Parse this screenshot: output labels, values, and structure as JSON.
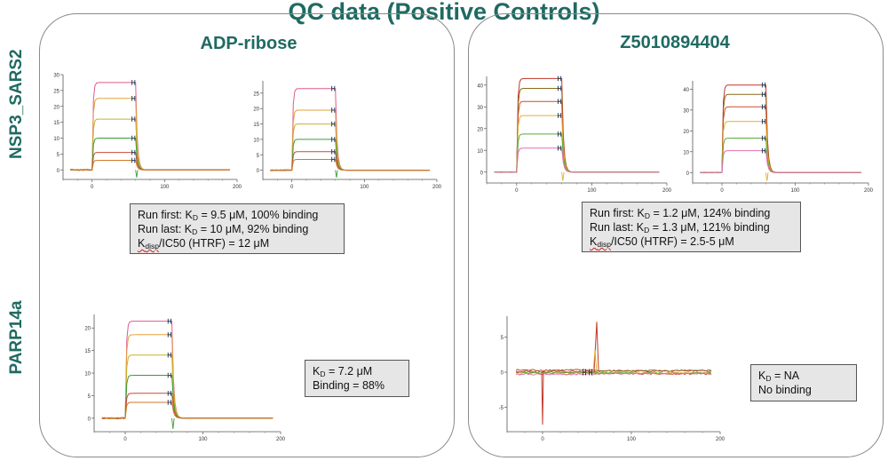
{
  "title": "QC data (Positive Controls)",
  "columns": [
    "ADP-ribose",
    "Z5010894404"
  ],
  "rows": [
    "NSP3_SARS2",
    "PARP14a"
  ],
  "notes": {
    "nsp3_adp": {
      "l1a": "Run first: K",
      "l1s": "D",
      "l1b": " = 9.5 μM, 100% binding",
      "l2a": "Run last: K",
      "l2s": "D",
      "l2b": " = 10 μM, 92% binding",
      "l3a": "K",
      "l3s": "disp",
      "l3b": "/IC50 (HTRF) = 12 μM"
    },
    "nsp3_z": {
      "l1a": "Run first: K",
      "l1s": "D",
      "l1b": " = 1.2 μM, 124% binding",
      "l2a": "Run last: K",
      "l2s": "D",
      "l2b": " = 1.3 μM, 121% binding",
      "l3a": "K",
      "l3s": "disp",
      "l3b": "/IC50 (HTRF) = 2.5-5 μM"
    },
    "parp_adp": {
      "l1a": "K",
      "l1s": "D",
      "l1b": " = 7.2 μM",
      "l2": "Binding = 88%"
    },
    "parp_z": {
      "l1a": "K",
      "l1s": "D",
      "l1b": " = NA",
      "l2": "No binding"
    }
  },
  "chart_data": [
    {
      "id": "nsp3-adp-first",
      "type": "line",
      "x_ticks": [
        0,
        100,
        200
      ],
      "y_ticks": [
        0,
        5,
        10,
        15,
        20,
        25,
        30
      ],
      "xlim": [
        -40,
        200
      ],
      "ylim": [
        -3,
        30
      ],
      "association": [
        0,
        60
      ],
      "x_curve_start": -30,
      "x_curve_end": 190,
      "series": [
        {
          "color": "#e05a8c",
          "plateau": 27.5
        },
        {
          "color": "#e3a23a",
          "plateau": 22.5
        },
        {
          "color": "#c9b02a",
          "plateau": 16.0
        },
        {
          "color": "#3a9c3a",
          "plateau": 10.0
        },
        {
          "color": "#c84a3a",
          "plateau": 5.5
        },
        {
          "color": "#d07a2a",
          "plateau": 3.0
        }
      ]
    },
    {
      "id": "nsp3-adp-last",
      "type": "line",
      "x_ticks": [
        0,
        100,
        200
      ],
      "y_ticks": [
        0,
        5,
        10,
        15,
        20,
        25
      ],
      "xlim": [
        -40,
        200
      ],
      "ylim": [
        -3,
        29
      ],
      "association": [
        0,
        60
      ],
      "x_curve_start": -30,
      "x_curve_end": 190,
      "series": [
        {
          "color": "#e05a8c",
          "plateau": 26.5
        },
        {
          "color": "#e3a23a",
          "plateau": 19.5
        },
        {
          "color": "#c9b02a",
          "plateau": 15.0
        },
        {
          "color": "#3a9c3a",
          "plateau": 10.0
        },
        {
          "color": "#c84a3a",
          "plateau": 6.0
        },
        {
          "color": "#d07a2a",
          "plateau": 3.5
        }
      ]
    },
    {
      "id": "nsp3-z-first",
      "type": "line",
      "x_ticks": [
        0,
        100,
        200
      ],
      "y_ticks": [
        0,
        10,
        20,
        30,
        40
      ],
      "xlim": [
        -40,
        200
      ],
      "ylim": [
        -5,
        44
      ],
      "association": [
        0,
        60
      ],
      "x_curve_start": -30,
      "x_curve_end": 190,
      "series": [
        {
          "color": "#c0392b",
          "plateau": 43.0
        },
        {
          "color": "#8a6a1a",
          "plateau": 38.5
        },
        {
          "color": "#d04a2a",
          "plateau": 32.5
        },
        {
          "color": "#e0b030",
          "plateau": 26.0
        },
        {
          "color": "#5aaa3a",
          "plateau": 17.5
        },
        {
          "color": "#e070b0",
          "plateau": 11.0
        }
      ]
    },
    {
      "id": "nsp3-z-last",
      "type": "line",
      "x_ticks": [
        0,
        100,
        200
      ],
      "y_ticks": [
        0,
        10,
        20,
        30,
        40
      ],
      "xlim": [
        -40,
        200
      ],
      "ylim": [
        -5,
        44
      ],
      "association": [
        0,
        60
      ],
      "x_curve_start": -30,
      "x_curve_end": 190,
      "series": [
        {
          "color": "#c0392b",
          "plateau": 42.0
        },
        {
          "color": "#8a6a1a",
          "plateau": 37.5
        },
        {
          "color": "#d04a2a",
          "plateau": 31.5
        },
        {
          "color": "#e0b030",
          "plateau": 24.5
        },
        {
          "color": "#5aaa3a",
          "plateau": 16.5
        },
        {
          "color": "#e070b0",
          "plateau": 10.5
        }
      ]
    },
    {
      "id": "parp-adp",
      "type": "line",
      "x_ticks": [
        0,
        100,
        200
      ],
      "y_ticks": [
        0,
        5,
        10,
        15,
        20
      ],
      "xlim": [
        -40,
        200
      ],
      "ylim": [
        -3,
        23
      ],
      "association": [
        0,
        60
      ],
      "x_curve_start": -30,
      "x_curve_end": 190,
      "series": [
        {
          "color": "#e05a8c",
          "plateau": 21.5
        },
        {
          "color": "#e3a23a",
          "plateau": 18.5
        },
        {
          "color": "#c9b02a",
          "plateau": 14.0
        },
        {
          "color": "#3a9c3a",
          "plateau": 9.5
        },
        {
          "color": "#c84a3a",
          "plateau": 5.5
        },
        {
          "color": "#d07a2a",
          "plateau": 3.5
        }
      ]
    },
    {
      "id": "parp-z",
      "type": "line",
      "x_ticks": [
        0,
        100,
        200
      ],
      "y_ticks": [
        -5,
        0,
        5
      ],
      "xlim": [
        -40,
        200
      ],
      "ylim": [
        -8.5,
        8
      ],
      "flat": true,
      "x_curve_start": -30,
      "x_curve_end": 190,
      "series": [
        {
          "color": "#c0392b",
          "level": 0.3
        },
        {
          "color": "#8a6a1a",
          "level": 0.1
        },
        {
          "color": "#d04a2a",
          "level": -0.1
        },
        {
          "color": "#e0b030",
          "level": -0.2
        },
        {
          "color": "#5aaa3a",
          "level": 0.0
        },
        {
          "color": "#e070b0",
          "level": -0.3
        }
      ]
    }
  ]
}
